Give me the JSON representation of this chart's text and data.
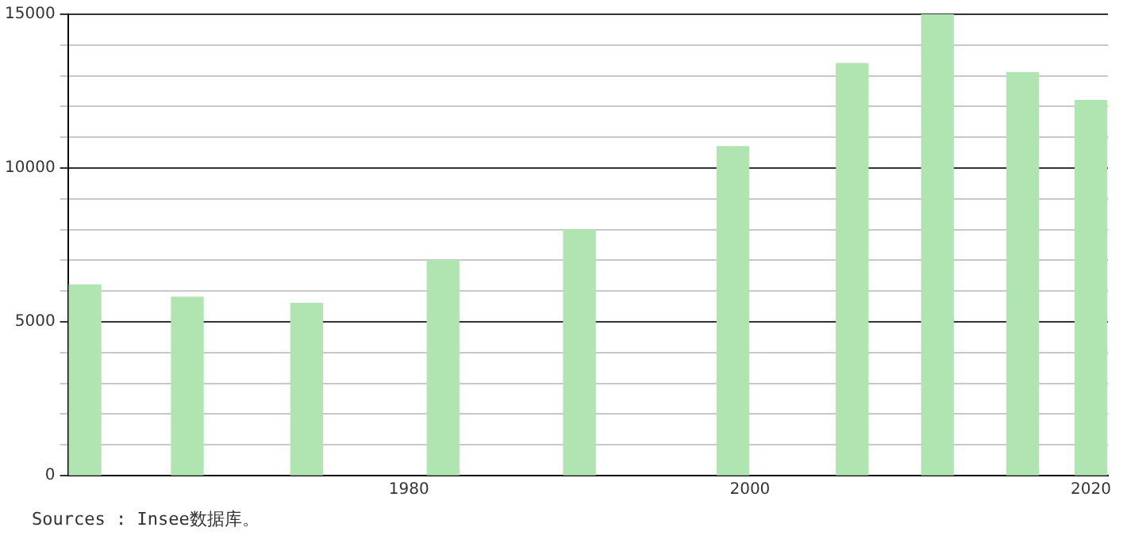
{
  "chart_data": {
    "type": "bar",
    "x": [
      1961,
      1967,
      1974,
      1982,
      1990,
      1999,
      2006,
      2011,
      2016,
      2020
    ],
    "values": [
      6200,
      5800,
      5600,
      7000,
      8000,
      10700,
      13400,
      15000,
      13100,
      12200
    ],
    "color": "#b0e4b0",
    "xlim": [
      1960,
      2021
    ],
    "xticks": [
      1980,
      2000,
      2020
    ],
    "ylim": [
      0,
      15000
    ],
    "yticks": [
      0,
      {
        "value": 1000,
        "label": null
      },
      {
        "value": 2000,
        "label": null
      },
      {
        "value": 3000,
        "label": null
      },
      {
        "value": 4000,
        "label": null
      },
      5000,
      {
        "value": 6000,
        "label": null
      },
      {
        "value": 7000,
        "label": null
      },
      {
        "value": 8000,
        "label": null
      },
      {
        "value": 9000,
        "label": null
      },
      10000,
      {
        "value": 11000,
        "label": null
      },
      {
        "value": 12000,
        "label": null
      },
      {
        "value": 13000,
        "label": null
      },
      {
        "value": 14000,
        "label": null
      },
      15000
    ],
    "grid": "y",
    "annotations": [
      "Sources : Insee数据库。"
    ]
  }
}
